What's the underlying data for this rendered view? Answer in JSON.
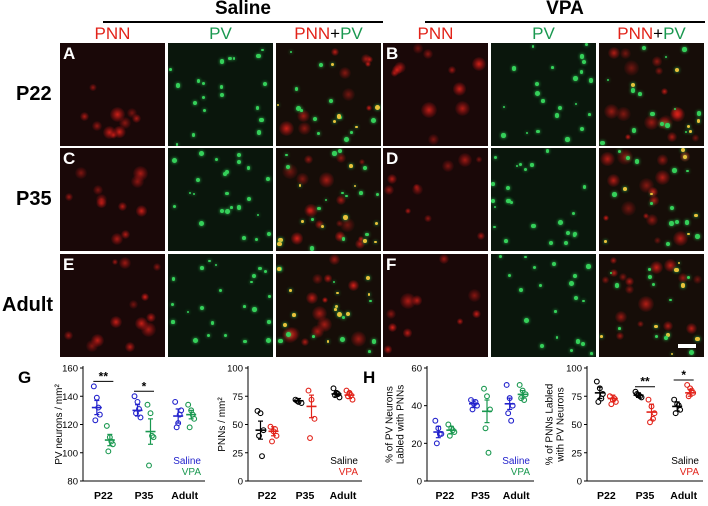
{
  "groups": [
    "Saline",
    "VPA"
  ],
  "channel_headers": [
    {
      "parts": [
        {
          "text": "PNN",
          "color": "#e2231a"
        }
      ]
    },
    {
      "parts": [
        {
          "text": "PV",
          "color": "#1a9850"
        }
      ]
    },
    {
      "parts": [
        {
          "text": "PNN",
          "color": "#e2231a"
        },
        {
          "text": "+",
          "color": "#000000"
        },
        {
          "text": "PV",
          "color": "#1a9850"
        }
      ]
    }
  ],
  "row_labels": [
    "P22",
    "P35",
    "Adult"
  ],
  "panel_letters": [
    "A",
    "B",
    "C",
    "D",
    "E",
    "F"
  ],
  "figure_letters": [
    "G",
    "H"
  ],
  "colors": {
    "saline_pv": "#2222cc",
    "vpa_pv": "#1a9850",
    "saline_pnn": "#000000",
    "vpa_pnn": "#e2231a",
    "pnn_signal": "#e2231a",
    "pv_signal": "#35d05a"
  },
  "chart_data": [
    {
      "type": "scatter",
      "ylabel": "PV neurons / mm²",
      "categories": [
        "P22",
        "P35",
        "Adult"
      ],
      "yticks": [
        80,
        100,
        120,
        140,
        160
      ],
      "ylim": [
        80,
        160
      ],
      "legend": [
        "Saline",
        "VPA"
      ],
      "legend_colors": [
        "#2222cc",
        "#1a9850"
      ],
      "significance": [
        {
          "category": "P22",
          "label": "**"
        },
        {
          "category": "P35",
          "label": "*"
        }
      ],
      "series": [
        {
          "name": "Saline",
          "color": "#2222cc",
          "mean": [
            132,
            130,
            126
          ],
          "sem": [
            5,
            4,
            5
          ],
          "points": [
            [
              147,
              139,
              127,
              123,
              132
            ],
            [
              140,
              136,
              125,
              128,
              131
            ],
            [
              136,
              121,
              130,
              118,
              127
            ]
          ]
        },
        {
          "name": "VPA",
          "color": "#1a9850",
          "mean": [
            109,
            115,
            127
          ],
          "sem": [
            4,
            9,
            3
          ],
          "points": [
            [
              119,
              111,
              106,
              101,
              108
            ],
            [
              134,
              128,
              111,
              91,
              112
            ],
            [
              134,
              130,
              124,
              118,
              127
            ]
          ]
        }
      ]
    },
    {
      "type": "scatter",
      "ylabel": "PNNs / mm²",
      "categories": [
        "P22",
        "P35",
        "Adult"
      ],
      "yticks": [
        0,
        25,
        50,
        75,
        100
      ],
      "ylim": [
        0,
        100
      ],
      "legend": [
        "Saline",
        "VPA"
      ],
      "legend_colors": [
        "#000000",
        "#e2231a"
      ],
      "significance": [],
      "series": [
        {
          "name": "Saline",
          "color": "#000000",
          "mean": [
            45,
            71,
            77
          ],
          "sem": [
            8,
            2,
            2
          ],
          "points": [
            [
              62,
              60,
              45,
              40,
              22
            ],
            [
              72,
              70,
              69,
              71
            ],
            [
              82,
              78,
              74,
              76,
              77
            ]
          ]
        },
        {
          "name": "VPA",
          "color": "#e2231a",
          "mean": [
            44,
            66,
            76
          ],
          "sem": [
            4,
            10,
            3
          ],
          "points": [
            [
              48,
              44,
              40,
              35,
              46
            ],
            [
              80,
              72,
              55,
              38
            ],
            [
              80,
              78,
              72,
              75,
              76
            ]
          ]
        }
      ]
    },
    {
      "type": "scatter",
      "ylabel": "% of PV Neurons\nLabled with PNNs",
      "categories": [
        "P22",
        "P35",
        "Adult"
      ],
      "yticks": [
        0,
        20,
        40,
        60
      ],
      "ylim": [
        0,
        60
      ],
      "legend": [
        "Saline",
        "VPA"
      ],
      "legend_colors": [
        "#2222cc",
        "#1a9850"
      ],
      "significance": [],
      "series": [
        {
          "name": "Saline",
          "color": "#2222cc",
          "mean": [
            26,
            41,
            41
          ],
          "sem": [
            3,
            2,
            3
          ],
          "points": [
            [
              32,
              28,
              25,
              20,
              25
            ],
            [
              43,
              41,
              40,
              38,
              42
            ],
            [
              51,
              44,
              40,
              36,
              32
            ]
          ]
        },
        {
          "name": "VPA",
          "color": "#1a9850",
          "mean": [
            27,
            37,
            46
          ],
          "sem": [
            2,
            6,
            2
          ],
          "points": [
            [
              30,
              28,
              26,
              24,
              27
            ],
            [
              49,
              45,
              38,
              28,
              15
            ],
            [
              51,
              48,
              46,
              44,
              43
            ]
          ]
        }
      ]
    },
    {
      "type": "scatter",
      "ylabel": "% of PNNs Labled\nwith PV Neurons",
      "categories": [
        "P22",
        "P35",
        "Adult"
      ],
      "yticks": [
        0,
        25,
        50,
        75,
        100
      ],
      "ylim": [
        0,
        100
      ],
      "legend": [
        "Saline",
        "VPA"
      ],
      "legend_colors": [
        "#000000",
        "#e2231a"
      ],
      "significance": [
        {
          "category": "P35",
          "label": "**"
        },
        {
          "category": "Adult",
          "label": "*"
        }
      ],
      "series": [
        {
          "name": "Saline",
          "color": "#000000",
          "mean": [
            78,
            76,
            66
          ],
          "sem": [
            5,
            2,
            4
          ],
          "points": [
            [
              88,
              82,
              77,
              70,
              73
            ],
            [
              79,
              76,
              74,
              77,
              75
            ],
            [
              72,
              68,
              63,
              60,
              67
            ]
          ]
        },
        {
          "name": "VPA",
          "color": "#e2231a",
          "mean": [
            73,
            61,
            78
          ],
          "sem": [
            3,
            7,
            3
          ],
          "points": [
            [
              75,
              72,
              70,
              68,
              73
            ],
            [
              72,
              66,
              60,
              52,
              55
            ],
            [
              85,
              82,
              78,
              75,
              80
            ]
          ]
        }
      ]
    }
  ]
}
